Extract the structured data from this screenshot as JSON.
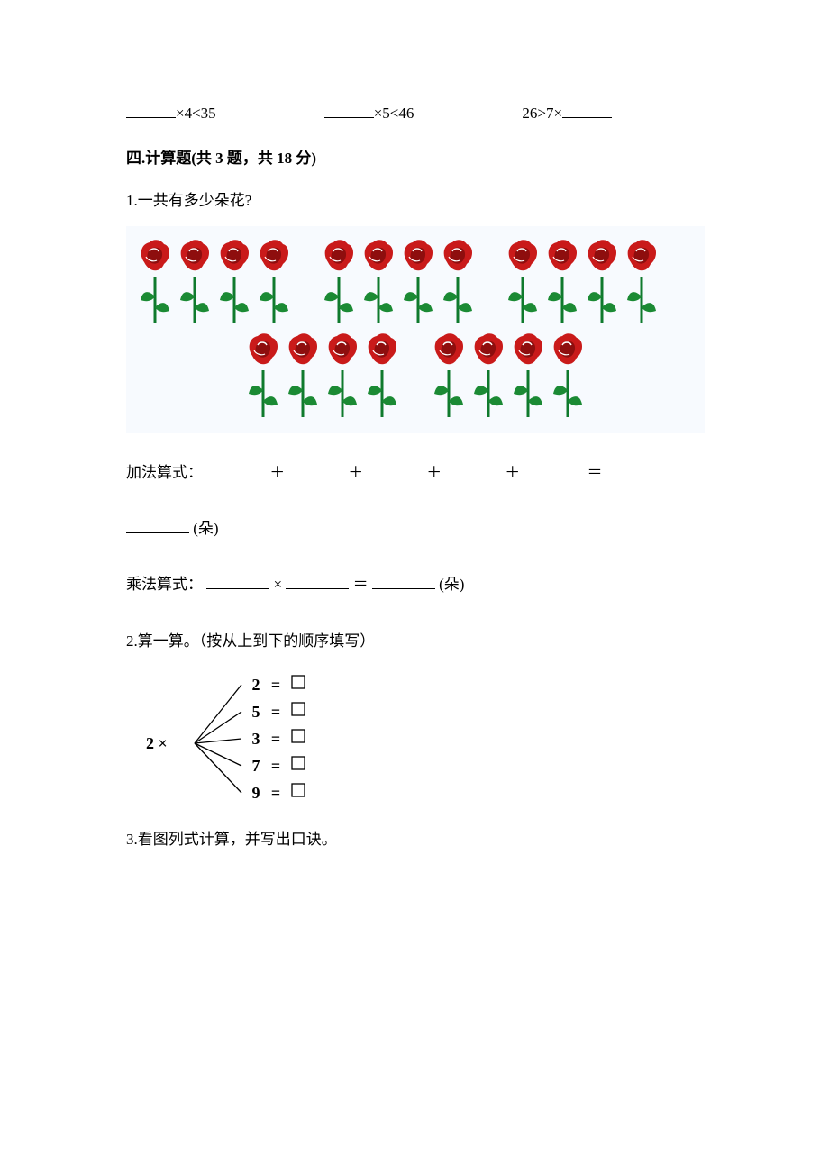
{
  "top_row": {
    "items": [
      {
        "suffix": "×4<35"
      },
      {
        "suffix": "×5<46"
      },
      {
        "prefix": "26>7×"
      }
    ],
    "blank_width": 55
  },
  "section4": {
    "heading": "四.计算题(共 3 题，共 18 分)"
  },
  "q1": {
    "prompt": "1.一共有多少朵花?",
    "flowers": {
      "groups_per_row": [
        3,
        2
      ],
      "flowers_per_group": 4,
      "background_color": "#f7fafe",
      "flower_colors": {
        "petal": "#c91a1a",
        "petal_dark": "#8e0e0e",
        "stem": "#0f7a2d",
        "leaf": "#1b8a34"
      }
    },
    "addition_label": "加法算式：",
    "addition_blanks": 5,
    "eq": "＝",
    "plus": "＋",
    "unit_flower": "(朵)",
    "mult_label": "乘法算式：",
    "mult_times": "×",
    "mult_eq": "＝",
    "blank_width": 70
  },
  "q2": {
    "prompt": "2.算一算。（按从上到下的顺序填写）",
    "diagram": {
      "left_label": "2 ×",
      "operands": [
        "2",
        "5",
        "3",
        "7",
        "9"
      ],
      "eq": "=",
      "font_family": "serif",
      "fontsize": 18,
      "line_color": "#000000",
      "box_side": 14
    }
  },
  "q3": {
    "prompt": "3.看图列式计算，并写出口诀。"
  }
}
